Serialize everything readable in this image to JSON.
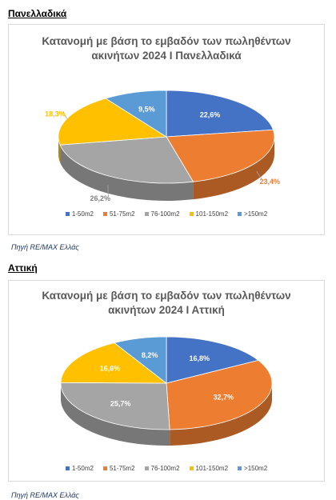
{
  "colors": {
    "blue": "#4472c4",
    "orange": "#ed7d31",
    "gray": "#a5a5a5",
    "yellow": "#ffc000",
    "lightblue": "#5b9bd5"
  },
  "sections": [
    {
      "heading": "Πανελλαδικά",
      "source": "Πηγή RE/MAX Ελλάς"
    },
    {
      "heading": "Αττική",
      "source": "Πηγή RE/MAX Ελλάς"
    }
  ],
  "chart_data": [
    {
      "type": "pie",
      "title_lines": [
        "Κατανομή με βάση το εμβαδόν των πωληθέντων",
        "ακινήτων 2024 Ι Πανελλαδικά"
      ],
      "categories": [
        "1-50m2",
        "51-75m2",
        "76-100m2",
        "101-150m2",
        ">150m2"
      ],
      "values": [
        22.6,
        23.4,
        26.2,
        18.3,
        9.5
      ],
      "labels": [
        "22,6%",
        "23,4%",
        "26,2%",
        "18,3%",
        "9,5%"
      ],
      "legend_position": "bottom",
      "style": "3d"
    },
    {
      "type": "pie",
      "title_lines": [
        "Κατανομή με βάση το εμβαδόν των πωληθέντων",
        "ακινήτων 2024 Ι Αττική"
      ],
      "categories": [
        "1-50m2",
        "51-75m2",
        "76-100m2",
        "101-150m2",
        ">150m2"
      ],
      "values": [
        16.8,
        32.7,
        25.7,
        16.6,
        8.2
      ],
      "labels": [
        "16,8%",
        "32,7%",
        "25,7%",
        "16,6%",
        "8,2%"
      ],
      "legend_position": "bottom",
      "style": "3d"
    }
  ]
}
